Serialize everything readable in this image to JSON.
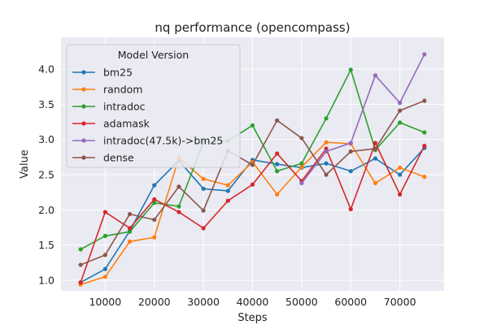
{
  "chart_data": {
    "type": "line",
    "title": "nq performance (opencompass)",
    "xlabel": "Steps",
    "ylabel": "Value",
    "xlim": [
      1000,
      79000
    ],
    "ylim": [
      0.85,
      4.45
    ],
    "xticks": [
      10000,
      20000,
      30000,
      40000,
      50000,
      60000,
      70000
    ],
    "xtick_labels": [
      "10000",
      "20000",
      "30000",
      "40000",
      "50000",
      "60000",
      "70000"
    ],
    "yticks": [
      1.0,
      1.5,
      2.0,
      2.5,
      3.0,
      3.5,
      4.0
    ],
    "ytick_labels": [
      "1.0",
      "1.5",
      "2.0",
      "2.5",
      "3.0",
      "3.5",
      "4.0"
    ],
    "grid": true,
    "legend": {
      "title": "Model Version",
      "placement": "top-left"
    },
    "x": [
      5000,
      10000,
      15000,
      20000,
      25000,
      30000,
      35000,
      40000,
      45000,
      50000,
      55000,
      60000,
      65000,
      70000,
      75000
    ],
    "series": [
      {
        "name": "bm25",
        "color": "#1f77b4",
        "values": [
          0.97,
          1.16,
          1.7,
          2.35,
          2.7,
          2.3,
          2.27,
          2.71,
          2.65,
          2.6,
          2.66,
          2.55,
          2.73,
          2.5,
          2.88
        ]
      },
      {
        "name": "random",
        "color": "#ff7f0e",
        "values": [
          0.94,
          1.05,
          1.55,
          1.61,
          2.74,
          2.44,
          2.35,
          2.68,
          2.22,
          2.61,
          2.96,
          2.94,
          2.38,
          2.6,
          2.47
        ]
      },
      {
        "name": "intradoc",
        "color": "#2ca02c",
        "values": [
          1.44,
          1.63,
          1.69,
          2.1,
          2.05,
          2.96,
          2.98,
          3.2,
          2.55,
          2.66,
          3.3,
          3.99,
          2.85,
          3.24,
          3.1
        ]
      },
      {
        "name": "adamask",
        "color": "#d62728",
        "values": [
          0.97,
          1.97,
          1.74,
          2.15,
          1.97,
          1.74,
          2.13,
          2.36,
          2.8,
          2.41,
          2.87,
          2.01,
          2.95,
          2.22,
          2.91
        ]
      },
      {
        "name": "intradoc(47.5k)->bm25",
        "color": "#9467bd",
        "values": [
          null,
          null,
          null,
          null,
          null,
          null,
          null,
          null,
          null,
          2.38,
          2.83,
          2.95,
          3.91,
          3.52,
          4.21
        ]
      },
      {
        "name": "dense",
        "color": "#8c564b",
        "values": [
          1.22,
          1.36,
          1.94,
          1.86,
          2.33,
          1.99,
          2.84,
          2.64,
          3.27,
          3.02,
          2.5,
          2.83,
          2.87,
          3.41,
          3.55
        ]
      }
    ]
  }
}
